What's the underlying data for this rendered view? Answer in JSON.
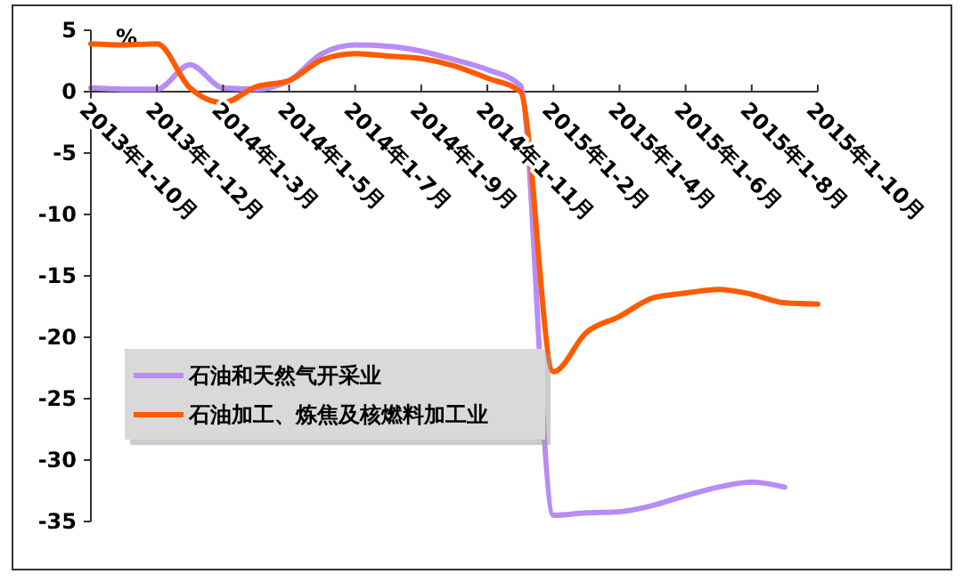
{
  "chart_data": {
    "type": "line",
    "ylabel": "%",
    "categories": [
      "2013年1-10月",
      null,
      "2013年1-12月",
      null,
      "2014年1-3月",
      null,
      "2014年1-5月",
      null,
      "2014年1-7月",
      null,
      "2014年1-9月",
      null,
      "2014年1-11月",
      null,
      "2015年1-2月",
      null,
      "2015年1-4月",
      null,
      "2015年1-6月",
      null,
      "2015年1-8月",
      null,
      "2015年1-10月"
    ],
    "series": [
      {
        "name": "石油和天然气开采业",
        "color": "#b88cf5",
        "values": [
          0.3,
          0.2,
          0.2,
          2.2,
          0.3,
          0.2,
          0.9,
          3.1,
          3.8,
          3.7,
          3.3,
          2.6,
          1.8,
          0.5,
          -34.5,
          -34.3,
          -34.2,
          -33.7,
          -32.9,
          -32.2,
          -31.8,
          -32.2,
          null
        ]
      },
      {
        "name": "石油加工、炼焦及核燃料加工业",
        "color": "#ff5a00",
        "values": [
          3.9,
          3.8,
          3.9,
          0.3,
          -0.9,
          0.4,
          0.9,
          2.6,
          3.1,
          2.9,
          2.7,
          2.1,
          1.1,
          0,
          -22.8,
          -19.6,
          -18.3,
          -16.8,
          -16.4,
          -16.1,
          -16.5,
          -17.2,
          -17.3
        ]
      }
    ],
    "ylim": [
      -35,
      5
    ],
    "yticks": [
      -35,
      -30,
      -25,
      -20,
      -15,
      -10,
      -5,
      0,
      5
    ],
    "grid": false,
    "legend": "bottom left",
    "marker": "none",
    "line_style": "solid"
  }
}
